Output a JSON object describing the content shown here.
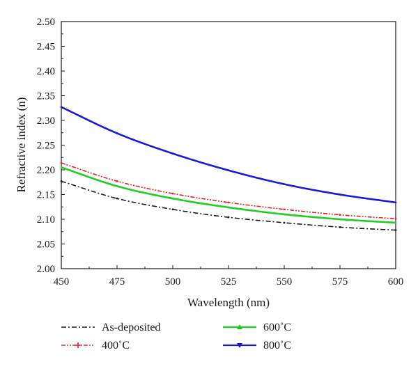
{
  "chart_data": {
    "type": "line",
    "xlabel": "Wavelength (nm)",
    "ylabel": "Refractive index (n)",
    "xlim": [
      450,
      600
    ],
    "ylim": [
      2.0,
      2.5
    ],
    "x_ticks": [
      "450",
      "475",
      "500",
      "525",
      "550",
      "575",
      "600"
    ],
    "y_ticks": [
      "2.00",
      "2.05",
      "2.10",
      "2.15",
      "2.20",
      "2.25",
      "2.30",
      "2.35",
      "2.40",
      "2.45",
      "2.50"
    ],
    "grid": false,
    "legend_placement": "bottom",
    "x": [
      450,
      475,
      500,
      525,
      550,
      575,
      600
    ],
    "series": [
      {
        "name": "As-deposited",
        "color": "#1a1a1a",
        "marker": "none",
        "dash": "dash-dot",
        "values": [
          2.177,
          2.142,
          2.12,
          2.104,
          2.093,
          2.084,
          2.078
        ]
      },
      {
        "name": "400˚C",
        "color": "#e8202a",
        "marker": "plus",
        "dash": "dash-dot-dot",
        "values": [
          2.214,
          2.177,
          2.152,
          2.134,
          2.12,
          2.109,
          2.101
        ]
      },
      {
        "name": "600˚C",
        "color": "#22cc22",
        "marker": "triangle-up",
        "dash": "solid",
        "values": [
          2.205,
          2.167,
          2.142,
          2.124,
          2.11,
          2.1,
          2.093
        ]
      },
      {
        "name": "800˚C",
        "color": "#1a1ad6",
        "marker": "triangle-down",
        "dash": "solid",
        "values": [
          2.327,
          2.274,
          2.233,
          2.199,
          2.171,
          2.15,
          2.134
        ]
      }
    ]
  }
}
